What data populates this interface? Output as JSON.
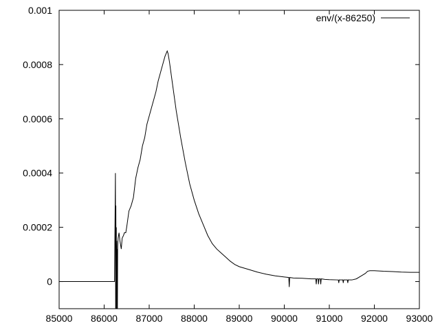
{
  "chart_data": {
    "type": "line",
    "title": "",
    "xlabel": "",
    "ylabel": "",
    "xlim": [
      85000,
      93000
    ],
    "ylim": [
      -0.0001,
      0.001
    ],
    "x_ticks": [
      85000,
      86000,
      87000,
      88000,
      89000,
      90000,
      91000,
      92000,
      93000
    ],
    "x_tick_labels": [
      "85000",
      "86000",
      "87000",
      "88000",
      "89000",
      "90000",
      "91000",
      "92000",
      "93000"
    ],
    "y_ticks": [
      0,
      0.0002,
      0.0004,
      0.0006,
      0.0008,
      0.001
    ],
    "y_tick_labels": [
      "0",
      "0.0002",
      "0.0004",
      "0.0006",
      "0.0008",
      "0.001"
    ],
    "grid": false,
    "legend_position": "top-right",
    "colors": {
      "line": "#000000",
      "axes": "#000000",
      "background": "#ffffff"
    },
    "series": [
      {
        "name": "env/(x-86250)",
        "x": [
          85000,
          86230,
          86250,
          86255,
          86260,
          86265,
          86270,
          86275,
          86280,
          86285,
          86290,
          86295,
          86300,
          86310,
          86330,
          86350,
          86380,
          86400,
          86430,
          86450,
          86480,
          86500,
          86550,
          86600,
          86650,
          86700,
          86750,
          86800,
          86850,
          86900,
          86950,
          87000,
          87050,
          87100,
          87150,
          87200,
          87250,
          87300,
          87350,
          87400,
          87420,
          87450,
          87500,
          87550,
          87600,
          87700,
          87800,
          87900,
          88000,
          88100,
          88200,
          88300,
          88400,
          88500,
          88600,
          88700,
          88800,
          88900,
          89000,
          89200,
          89400,
          89600,
          89800,
          90000,
          90100,
          90110,
          90120,
          90200,
          90400,
          90600,
          90700,
          90710,
          90720,
          90750,
          90760,
          90770,
          90800,
          90810,
          90820,
          90900,
          91000,
          91200,
          91210,
          91220,
          91300,
          91310,
          91320,
          91400,
          91410,
          91420,
          91500,
          91600,
          91700,
          91800,
          91850,
          91900,
          92000,
          92200,
          92400,
          92600,
          92800,
          93000
        ],
        "values": [
          0,
          0,
          0.0004,
          -0.0001,
          0.00028,
          -0.0001,
          0.0002,
          -0.0001,
          0.00015,
          -0.0001,
          0.00012,
          -0.0001,
          0.00013,
          0.00016,
          0.00018,
          0.00015,
          0.00012,
          0.00016,
          0.00017,
          0.00018,
          0.00018,
          0.0002,
          0.00026,
          0.00028,
          0.00031,
          0.00038,
          0.00042,
          0.00045,
          0.0005,
          0.00053,
          0.00058,
          0.00061,
          0.00064,
          0.00067,
          0.0007,
          0.00074,
          0.00077,
          0.0008,
          0.00083,
          0.00085,
          0.00084,
          0.00081,
          0.00075,
          0.00069,
          0.00063,
          0.00053,
          0.00044,
          0.00036,
          0.0003,
          0.00025,
          0.00021,
          0.00017,
          0.00014,
          0.00012,
          0.000105,
          9e-05,
          7.5e-05,
          6.3e-05,
          5.5e-05,
          4.5e-05,
          3.5e-05,
          2.7e-05,
          2.1e-05,
          1.7e-05,
          1.5e-05,
          -2e-05,
          1.5e-05,
          1.3e-05,
          1.2e-05,
          1e-05,
          1e-05,
          -1e-05,
          1e-05,
          1e-05,
          -1e-05,
          1e-05,
          1e-05,
          -1e-05,
          1e-05,
          8e-06,
          7e-06,
          6e-06,
          -5e-06,
          6e-06,
          6e-06,
          -5e-06,
          6e-06,
          6e-06,
          -5e-06,
          6e-06,
          6e-06,
          1e-05,
          2e-05,
          3e-05,
          3.8e-05,
          4e-05,
          4e-05,
          3.8e-05,
          3.7e-05,
          3.5e-05,
          3.4e-05,
          3.4e-05
        ]
      }
    ]
  }
}
